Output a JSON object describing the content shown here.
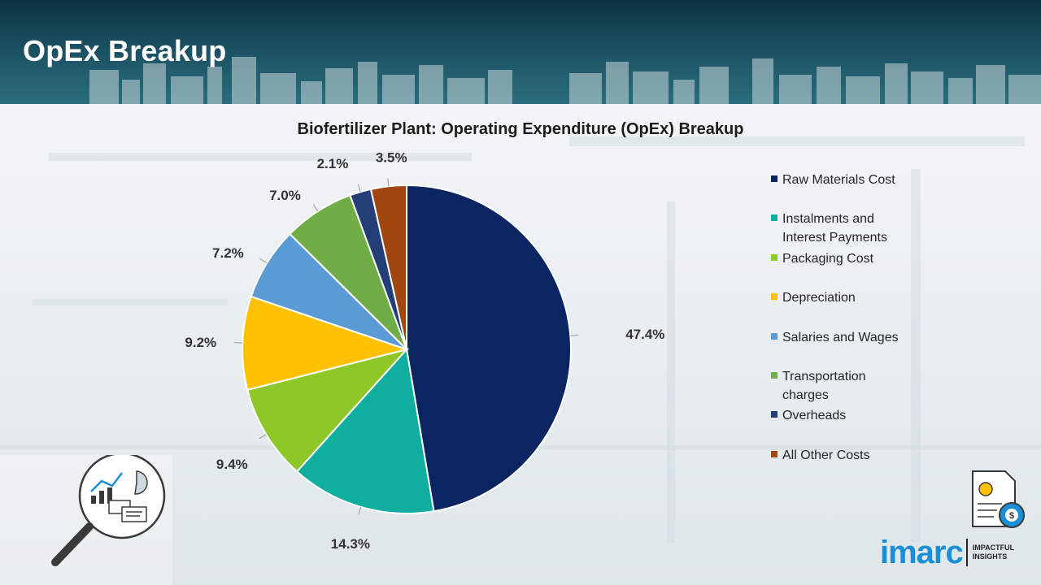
{
  "page": {
    "title": "OpEx Breakup"
  },
  "chart_data": {
    "type": "pie",
    "title": "Biofertilizer Plant: Operating Expenditure (OpEx) Breakup",
    "unit": "%",
    "slices": [
      {
        "label": "Raw Materials Cost",
        "value": 47.4,
        "display": "47.4%",
        "color": "#0b2560"
      },
      {
        "label": "Instalments and Interest Payments",
        "value": 14.3,
        "display": "14.3%",
        "color": "#0fae9f"
      },
      {
        "label": "Packaging Cost",
        "value": 9.4,
        "display": "9.4%",
        "color": "#8dc828"
      },
      {
        "label": "Depreciation",
        "value": 9.2,
        "display": "9.2%",
        "color": "#fdc100"
      },
      {
        "label": "Salaries and Wages",
        "value": 7.2,
        "display": "7.2%",
        "color": "#5b9bd5"
      },
      {
        "label": "Transportation charges",
        "value": 7.0,
        "display": "7.0%",
        "color": "#70ad47"
      },
      {
        "label": "Overheads",
        "value": 2.1,
        "display": "2.1%",
        "color": "#243f78"
      },
      {
        "label": "All Other Costs",
        "value": 3.5,
        "display": "3.5%",
        "color": "#a2460f"
      }
    ],
    "legend_position": "right"
  },
  "legend": {
    "items": [
      {
        "line1": "Raw Materials Cost",
        "line2": ""
      },
      {
        "line1": "Instalments and",
        "line2": "Interest Payments"
      },
      {
        "line1": "Packaging Cost",
        "line2": ""
      },
      {
        "line1": "Depreciation",
        "line2": ""
      },
      {
        "line1": "Salaries and Wages",
        "line2": ""
      },
      {
        "line1": "Transportation",
        "line2": "charges"
      },
      {
        "line1": "Overheads",
        "line2": ""
      },
      {
        "line1": "All Other Costs",
        "line2": ""
      }
    ]
  },
  "branding": {
    "logo_word": "imarc",
    "tagline_1": "IMPACTFUL",
    "tagline_2": "INSIGHTS",
    "logo_color": "#1a8fd8"
  }
}
